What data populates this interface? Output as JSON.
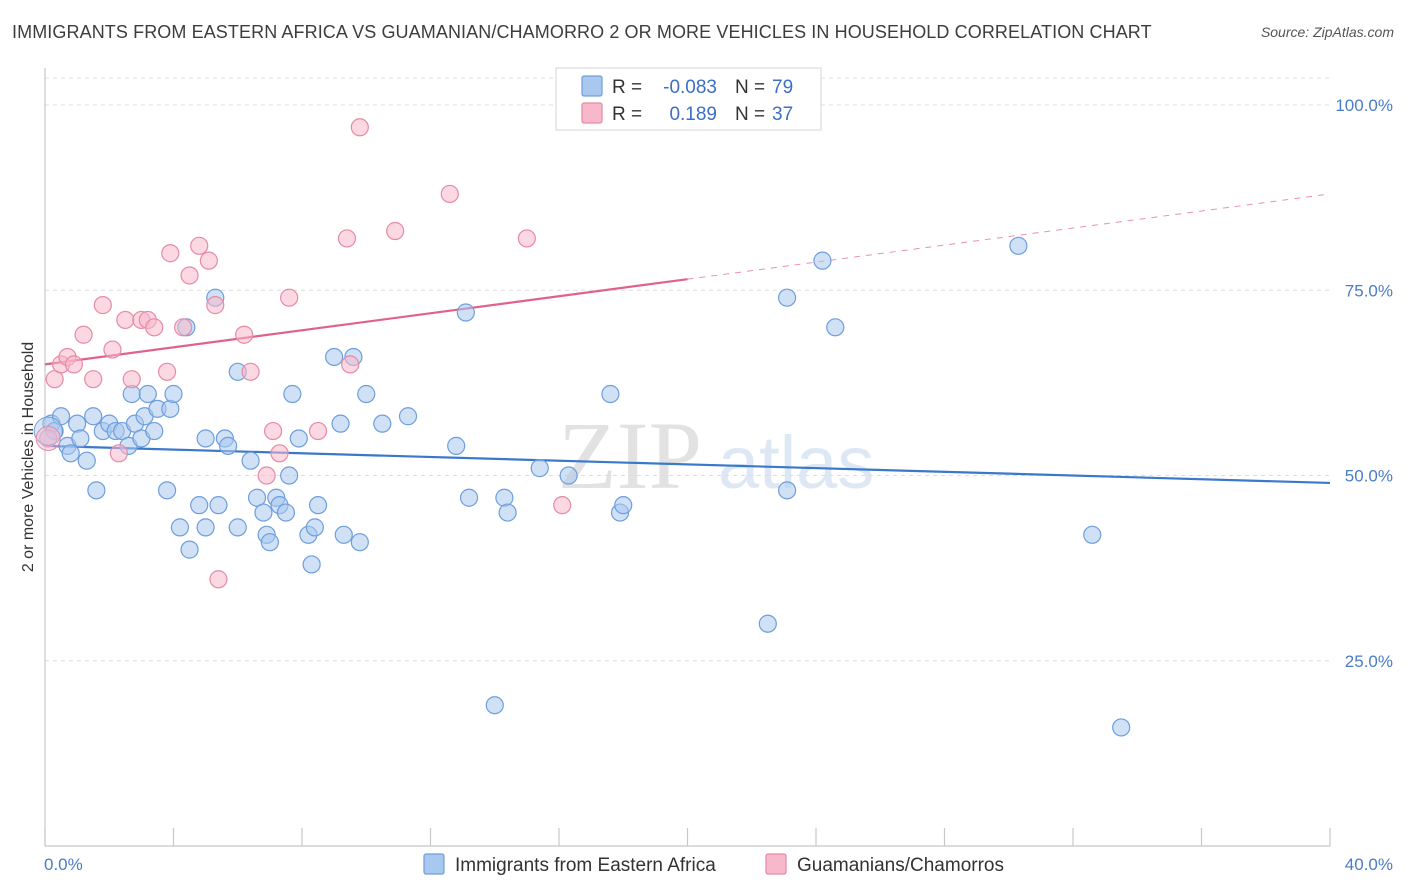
{
  "title": "IMMIGRANTS FROM EASTERN AFRICA VS GUAMANIAN/CHAMORRO 2 OR MORE VEHICLES IN HOUSEHOLD CORRELATION CHART",
  "source": "Source: ZipAtlas.com",
  "watermark": {
    "zip": "ZIP",
    "atlas": "atlas"
  },
  "chart_data": {
    "type": "scatter",
    "ylabel": "2 or more Vehicles in Household",
    "xlim": [
      0,
      40
    ],
    "ylim": [
      0,
      105
    ],
    "y_ticks": [
      {
        "value": 100,
        "label": "100.0%"
      },
      {
        "value": 75,
        "label": "75.0%"
      },
      {
        "value": 50,
        "label": "50.0%"
      },
      {
        "value": 25,
        "label": "25.0%"
      }
    ],
    "x_tick_values": [
      0,
      4,
      8,
      12,
      16,
      20,
      24,
      28,
      32,
      36,
      40
    ],
    "x_labels": {
      "min": "0.0%",
      "max": "40.0%"
    },
    "legend": {
      "r_label": "R =",
      "n_label": "N =",
      "entries": [
        {
          "r": "-0.083",
          "n": "79",
          "color": "#a9c8ef"
        },
        {
          "r": "0.189",
          "n": "37",
          "color": "#f7b8cb"
        }
      ]
    },
    "series": [
      {
        "name": "Immigrants from Eastern Africa",
        "color": "#a9c8ef",
        "stroke": "#6d9edd",
        "trend": {
          "x0": 0,
          "y0": 54.0,
          "x1": 40,
          "y1": 49.0,
          "solid_to": 40,
          "color": "#3a78cc"
        },
        "points": [
          [
            0.2,
            57
          ],
          [
            0.3,
            56
          ],
          [
            0.5,
            58
          ],
          [
            0.7,
            54
          ],
          [
            0.8,
            53
          ],
          [
            1.0,
            57
          ],
          [
            1.1,
            55
          ],
          [
            1.3,
            52
          ],
          [
            1.5,
            58
          ],
          [
            1.6,
            48
          ],
          [
            1.8,
            56
          ],
          [
            2.0,
            57
          ],
          [
            2.2,
            56
          ],
          [
            2.4,
            56
          ],
          [
            2.6,
            54
          ],
          [
            2.7,
            61
          ],
          [
            2.8,
            57
          ],
          [
            3.0,
            55
          ],
          [
            3.1,
            58
          ],
          [
            3.2,
            61
          ],
          [
            3.4,
            56
          ],
          [
            3.5,
            59
          ],
          [
            3.8,
            48
          ],
          [
            3.9,
            59
          ],
          [
            4.0,
            61
          ],
          [
            4.2,
            43
          ],
          [
            4.4,
            70
          ],
          [
            4.5,
            40
          ],
          [
            4.8,
            46
          ],
          [
            5.0,
            43
          ],
          [
            5.0,
            55
          ],
          [
            5.3,
            74
          ],
          [
            5.4,
            46
          ],
          [
            5.6,
            55
          ],
          [
            5.7,
            54
          ],
          [
            6.0,
            43
          ],
          [
            6.0,
            64
          ],
          [
            6.4,
            52
          ],
          [
            6.6,
            47
          ],
          [
            6.8,
            45
          ],
          [
            6.9,
            42
          ],
          [
            7.0,
            41
          ],
          [
            7.2,
            47
          ],
          [
            7.3,
            46
          ],
          [
            7.5,
            45
          ],
          [
            7.6,
            50
          ],
          [
            7.7,
            61
          ],
          [
            7.9,
            55
          ],
          [
            8.2,
            42
          ],
          [
            8.3,
            38
          ],
          [
            8.4,
            43
          ],
          [
            8.5,
            46
          ],
          [
            9.0,
            66
          ],
          [
            9.2,
            57
          ],
          [
            9.3,
            42
          ],
          [
            9.6,
            66
          ],
          [
            9.8,
            41
          ],
          [
            10.0,
            61
          ],
          [
            10.5,
            57
          ],
          [
            11.3,
            58
          ],
          [
            12.8,
            54
          ],
          [
            13.1,
            72
          ],
          [
            13.2,
            47
          ],
          [
            14.0,
            19
          ],
          [
            14.3,
            47
          ],
          [
            14.4,
            45
          ],
          [
            15.4,
            51
          ],
          [
            16.3,
            50
          ],
          [
            17.6,
            61
          ],
          [
            17.9,
            45
          ],
          [
            18.0,
            46
          ],
          [
            22.5,
            30
          ],
          [
            23.1,
            48
          ],
          [
            23.1,
            74
          ],
          [
            24.2,
            79
          ],
          [
            24.6,
            70
          ],
          [
            30.3,
            81
          ],
          [
            32.6,
            42
          ],
          [
            33.5,
            16
          ]
        ]
      },
      {
        "name": "Guamanians/Chamorros",
        "color": "#f7b8cb",
        "stroke": "#e68aa6",
        "trend": {
          "x0": 0,
          "y0": 65.0,
          "x1": 40,
          "y1": 88.0,
          "solid_to": 20,
          "color": "#e0628c"
        },
        "points": [
          [
            0.1,
            55
          ],
          [
            0.3,
            63
          ],
          [
            0.5,
            65
          ],
          [
            0.7,
            66
          ],
          [
            0.9,
            65
          ],
          [
            1.2,
            69
          ],
          [
            1.5,
            63
          ],
          [
            1.8,
            73
          ],
          [
            2.1,
            67
          ],
          [
            2.3,
            53
          ],
          [
            2.5,
            71
          ],
          [
            2.7,
            63
          ],
          [
            3.0,
            71
          ],
          [
            3.2,
            71
          ],
          [
            3.4,
            70
          ],
          [
            3.8,
            64
          ],
          [
            3.9,
            80
          ],
          [
            4.3,
            70
          ],
          [
            4.5,
            77
          ],
          [
            4.8,
            81
          ],
          [
            5.1,
            79
          ],
          [
            5.3,
            73
          ],
          [
            5.4,
            36
          ],
          [
            6.2,
            69
          ],
          [
            6.4,
            64
          ],
          [
            6.9,
            50
          ],
          [
            7.1,
            56
          ],
          [
            7.3,
            53
          ],
          [
            7.6,
            74
          ],
          [
            8.5,
            56
          ],
          [
            9.4,
            82
          ],
          [
            9.5,
            65
          ],
          [
            9.8,
            97
          ],
          [
            10.9,
            83
          ],
          [
            12.6,
            88
          ],
          [
            15.0,
            82
          ],
          [
            16.1,
            46
          ]
        ]
      }
    ]
  }
}
